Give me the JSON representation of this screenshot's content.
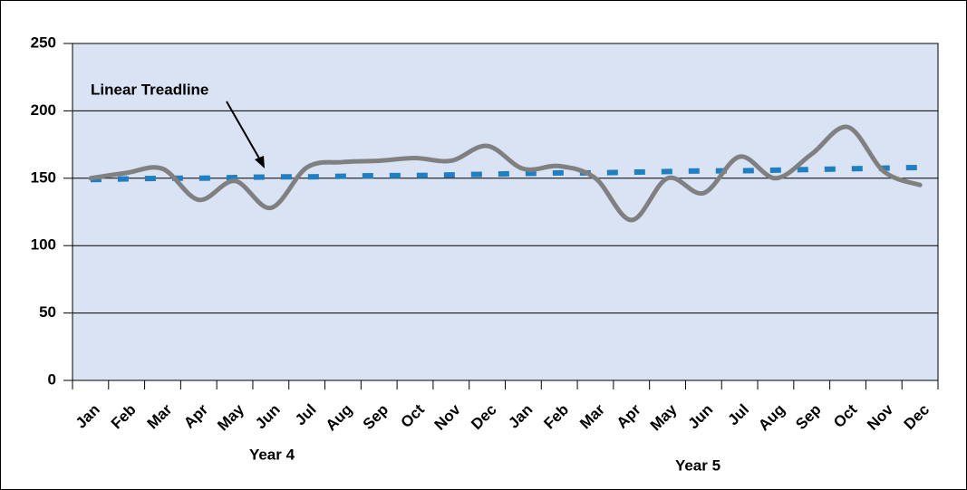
{
  "chart_data": {
    "type": "line",
    "categories": [
      "Jan",
      "Feb",
      "Mar",
      "Apr",
      "May",
      "Jun",
      "Jul",
      "Aug",
      "Sep",
      "Oct",
      "Nov",
      "Dec",
      "Jan",
      "Feb",
      "Mar",
      "Apr",
      "May",
      "Jun",
      "Jul",
      "Aug",
      "Sep",
      "Oct",
      "Nov",
      "Dec"
    ],
    "groups": [
      "Year 4",
      "Year 5"
    ],
    "series": [
      {
        "color": "#808080",
        "values": [
          150,
          154,
          157,
          134,
          148,
          128,
          158,
          162,
          163,
          165,
          163,
          174,
          157,
          159,
          150,
          119,
          150,
          139,
          166,
          150,
          168,
          188,
          155,
          145
        ]
      }
    ],
    "trendline": {
      "label": "Linear Treadline",
      "color": "#1f7fc0",
      "values": [
        149,
        149.5,
        150,
        150,
        150.5,
        151,
        151,
        151.5,
        152,
        152,
        152.5,
        153,
        153.5,
        154,
        154,
        154.5,
        155,
        155.5,
        155.5,
        156,
        156.5,
        157,
        157.5,
        158
      ]
    },
    "ylim": [
      0,
      250
    ],
    "yticks": [
      0,
      50,
      100,
      150,
      200,
      250
    ],
    "grid": true,
    "background": "#d9e3f4"
  }
}
